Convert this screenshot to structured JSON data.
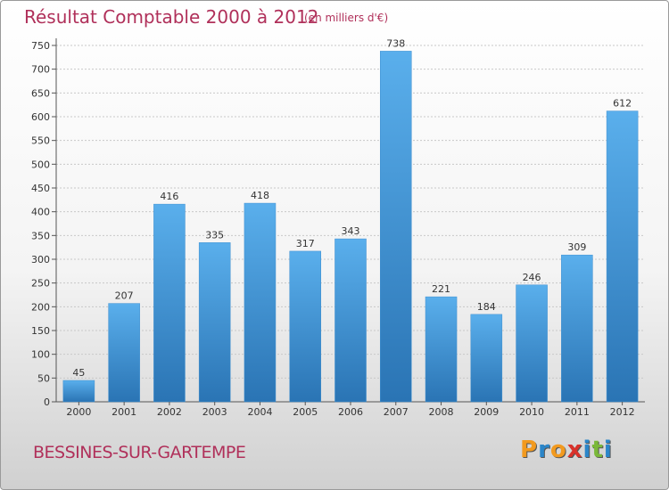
{
  "header": {
    "title": "Résultat Comptable 2000 à 2012",
    "subtitle": "(en milliers d'€)"
  },
  "footer": {
    "commune": "BESSINES-SUR-GARTEMPE",
    "logo_letters": [
      "P",
      "r",
      "o",
      "x",
      "i",
      "t",
      "i"
    ]
  },
  "colors": {
    "title": "#b0305a",
    "bar_top": "#5aafec",
    "bar_bottom": "#2a74b4",
    "logo": [
      "#f29a1f",
      "#2b86c9",
      "#f29a1f",
      "#d9322b",
      "#2b86c9",
      "#7ab83a",
      "#2b86c9"
    ]
  },
  "chart_data": {
    "type": "bar",
    "categories": [
      "2000",
      "2001",
      "2002",
      "2003",
      "2004",
      "2005",
      "2006",
      "2007",
      "2008",
      "2009",
      "2010",
      "2011",
      "2012"
    ],
    "values": [
      45,
      207,
      416,
      335,
      418,
      317,
      343,
      738,
      221,
      184,
      246,
      309,
      612
    ],
    "ylim": [
      0,
      750
    ],
    "yticks": [
      0,
      50,
      100,
      150,
      200,
      250,
      300,
      350,
      400,
      450,
      500,
      550,
      600,
      650,
      700,
      750
    ],
    "grid": true,
    "legend": "none"
  }
}
